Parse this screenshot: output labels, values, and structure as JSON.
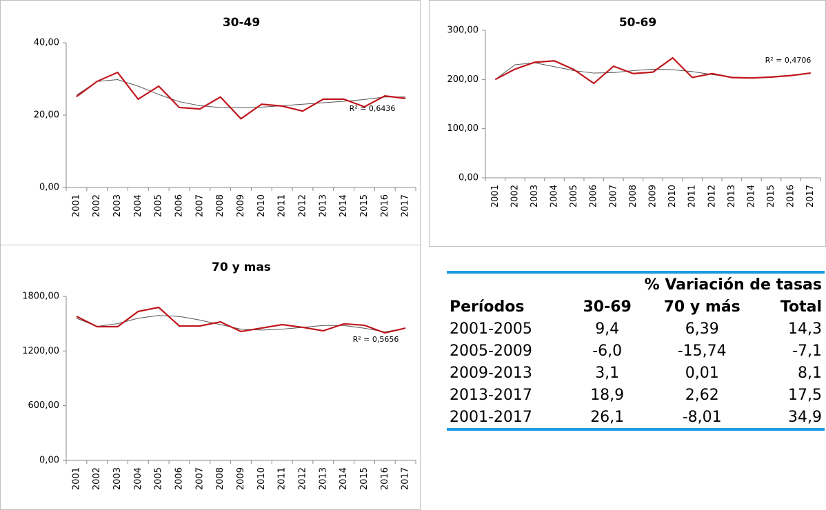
{
  "chart_data": [
    {
      "type": "line",
      "title": "30-49",
      "categories": [
        "2001",
        "2002",
        "2003",
        "2004",
        "2005",
        "2006",
        "2007",
        "2008",
        "2009",
        "2010",
        "2011",
        "2012",
        "2013",
        "2014",
        "2015",
        "2016",
        "2017"
      ],
      "series": [
        {
          "color": "#c0161c",
          "values": [
            25.1,
            29.3,
            31.8,
            24.4,
            28.0,
            22.1,
            21.7,
            25.0,
            19.0,
            23.0,
            22.5,
            21.1,
            24.4,
            24.4,
            22.3,
            25.3,
            24.6
          ]
        },
        {
          "color": "#555555",
          "values": [
            25.5,
            29.3,
            29.8,
            28.0,
            25.7,
            23.7,
            22.6,
            22.1,
            22.0,
            22.2,
            22.6,
            23.0,
            23.4,
            23.8,
            24.3,
            25.0,
            25.0
          ]
        }
      ],
      "ylim": [
        0,
        40
      ],
      "yticks": [
        {
          "value": 0,
          "label": "0,00"
        },
        {
          "value": 20,
          "label": "20,00"
        },
        {
          "value": 40,
          "label": "40,00"
        }
      ],
      "annotation": "R² = 0,6436"
    },
    {
      "type": "line",
      "title": "50-69",
      "categories": [
        "2001",
        "2002",
        "2003",
        "2004",
        "2005",
        "2006",
        "2007",
        "2008",
        "2009",
        "2010",
        "2011",
        "2012",
        "2013",
        "2014",
        "2015",
        "2016",
        "2017"
      ],
      "series": [
        {
          "color": "#c0161c",
          "values": [
            200,
            221,
            235,
            238,
            220,
            192,
            227,
            212,
            215,
            244,
            204,
            212,
            204,
            203,
            205,
            208,
            213
          ]
        },
        {
          "color": "#555555",
          "values": [
            200,
            230,
            234,
            226,
            218,
            213,
            214,
            218,
            221,
            220,
            216,
            210,
            205,
            203,
            204,
            208,
            214
          ]
        }
      ],
      "ylim": [
        0,
        300
      ],
      "yticks": [
        {
          "value": 0,
          "label": "0,00"
        },
        {
          "value": 100,
          "label": "100,00"
        },
        {
          "value": 200,
          "label": "200,00"
        },
        {
          "value": 300,
          "label": "300,00"
        }
      ],
      "annotation": "R² = 0,4706"
    },
    {
      "type": "line",
      "title": "70 y mas",
      "categories": [
        "2001",
        "2002",
        "2003",
        "2004",
        "2005",
        "2006",
        "2007",
        "2008",
        "2009",
        "2010",
        "2011",
        "2012",
        "2013",
        "2014",
        "2015",
        "2016",
        "2017"
      ],
      "series": [
        {
          "color": "#c0161c",
          "values": [
            1581,
            1467,
            1467,
            1634,
            1679,
            1475,
            1475,
            1520,
            1414,
            1452,
            1490,
            1460,
            1422,
            1498,
            1483,
            1399,
            1452
          ]
        },
        {
          "color": "#555555",
          "values": [
            1560,
            1470,
            1500,
            1560,
            1590,
            1580,
            1540,
            1490,
            1440,
            1430,
            1440,
            1460,
            1480,
            1480,
            1450,
            1410,
            1450
          ]
        }
      ],
      "ylim": [
        0,
        1800
      ],
      "yticks": [
        {
          "value": 0,
          "label": "0,00"
        },
        {
          "value": 600,
          "label": "600,00"
        },
        {
          "value": 1200,
          "label": "1200,00"
        },
        {
          "value": 1800,
          "label": "1800,00"
        }
      ],
      "annotation": "R² = 0,5656"
    }
  ],
  "table": {
    "title": "% Variación de tasas",
    "header": [
      "Períodos",
      "30-69",
      "70 y más",
      "Total"
    ],
    "rows": [
      [
        "2001-2005",
        "9,4",
        "6,39",
        "14,3"
      ],
      [
        "2005-2009",
        "-6,0",
        "-15,74",
        "-7,1"
      ],
      [
        "2009-2013",
        "3,1",
        "0,01",
        "8,1"
      ],
      [
        "2013-2017",
        "18,9",
        "2,62",
        "17,5"
      ],
      [
        "2001-2017",
        "26,1",
        "-8,01",
        "34,9"
      ]
    ]
  }
}
